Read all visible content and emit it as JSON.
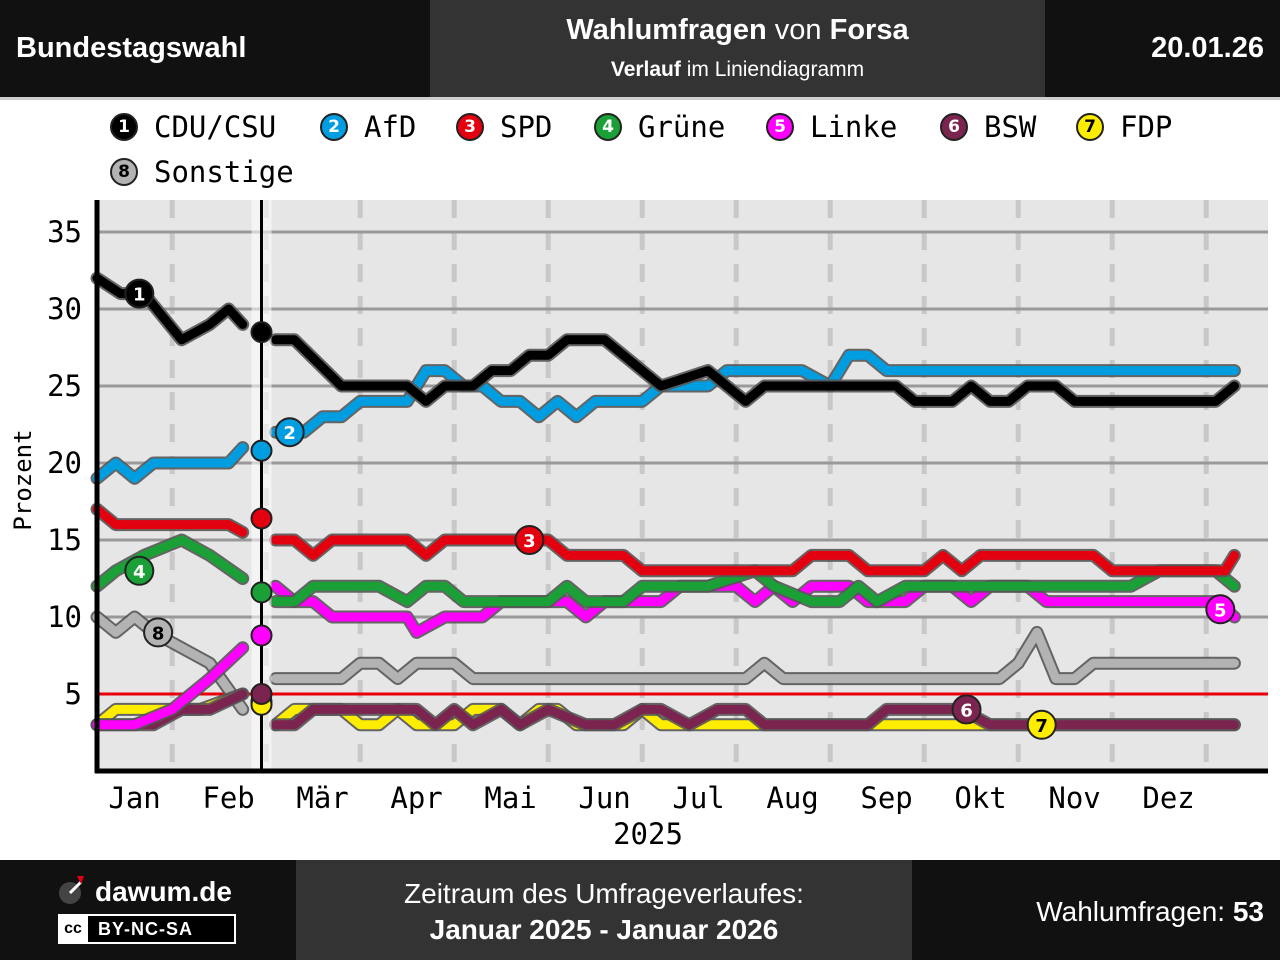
{
  "header": {
    "title": "Bundestagswahl",
    "subtitle_bold1": "Wahlumfragen",
    "subtitle_mid": "von",
    "subtitle_bold2": "Forsa",
    "line2_bold": "Verlauf",
    "line2_rest": "im Liniendiagramm",
    "date": "20.01.26"
  },
  "footer": {
    "site": "dawum.de",
    "license": "BY-NC-SA",
    "license_cc": "cc",
    "period_label": "Zeitraum des Umfrageverlaufes:",
    "period_value": "Januar 2025 - Januar 2026",
    "count_label": "Wahlumfragen:",
    "count_value": "53"
  },
  "colors": {
    "threshold": "#e8000b",
    "plot_bg": "#e6e6e6",
    "gridline": "#999999"
  },
  "chart_data": {
    "type": "line",
    "ylabel": "Prozent",
    "xlabel": "2025",
    "ylim": [
      0,
      37
    ],
    "yticks": [
      5,
      10,
      15,
      20,
      25,
      30,
      35
    ],
    "month_labels": [
      "Jan",
      "Feb",
      "Mär",
      "Apr",
      "Mai",
      "Jun",
      "Jul",
      "Aug",
      "Sep",
      "Okt",
      "Nov",
      "Dez"
    ],
    "x_range_months": [
      0,
      12.5
    ],
    "election_date_month": 1.75,
    "threshold": 5,
    "legend_position": "top",
    "series": [
      {
        "id": 1,
        "name": "CDU/CSU",
        "color": "#000000",
        "text_color": "#ffffff",
        "pre": [
          [
            0,
            32
          ],
          [
            0.25,
            31
          ],
          [
            0.5,
            31
          ],
          [
            0.9,
            28
          ],
          [
            1.2,
            29
          ],
          [
            1.4,
            30
          ],
          [
            1.55,
            29
          ]
        ],
        "election": 28.5,
        "post": [
          [
            1.9,
            28
          ],
          [
            2.1,
            28
          ],
          [
            2.6,
            25
          ],
          [
            3.0,
            25
          ],
          [
            3.3,
            25
          ],
          [
            3.5,
            24
          ],
          [
            3.7,
            25
          ],
          [
            4.0,
            25
          ],
          [
            4.2,
            26
          ],
          [
            4.4,
            26
          ],
          [
            4.6,
            27
          ],
          [
            4.8,
            27
          ],
          [
            5.0,
            28
          ],
          [
            5.4,
            28
          ],
          [
            5.6,
            27
          ],
          [
            5.8,
            26
          ],
          [
            6.0,
            25
          ],
          [
            6.5,
            26
          ],
          [
            6.9,
            24
          ],
          [
            7.1,
            25
          ],
          [
            7.5,
            25
          ],
          [
            7.9,
            25
          ],
          [
            8.2,
            25
          ],
          [
            8.5,
            25
          ],
          [
            8.7,
            24
          ],
          [
            9.1,
            24
          ],
          [
            9.3,
            25
          ],
          [
            9.5,
            24
          ],
          [
            9.7,
            24
          ],
          [
            9.9,
            25
          ],
          [
            10.2,
            25
          ],
          [
            10.4,
            24
          ],
          [
            10.8,
            24
          ],
          [
            11.1,
            24
          ],
          [
            11.4,
            24
          ],
          [
            11.7,
            24
          ],
          [
            11.9,
            24
          ],
          [
            12.1,
            25
          ]
        ],
        "label_at": [
          0.45,
          31
        ]
      },
      {
        "id": 2,
        "name": "AfD",
        "color": "#009ee0",
        "text_color": "#ffffff",
        "pre": [
          [
            0,
            19
          ],
          [
            0.2,
            20
          ],
          [
            0.4,
            19
          ],
          [
            0.6,
            20
          ],
          [
            1.0,
            20
          ],
          [
            1.4,
            20
          ],
          [
            1.55,
            21
          ]
        ],
        "election": 20.8,
        "post": [
          [
            1.9,
            22
          ],
          [
            2.2,
            22
          ],
          [
            2.4,
            23
          ],
          [
            2.6,
            23
          ],
          [
            2.8,
            24
          ],
          [
            3.3,
            24
          ],
          [
            3.5,
            26
          ],
          [
            3.7,
            26
          ],
          [
            3.9,
            25
          ],
          [
            4.1,
            25
          ],
          [
            4.3,
            24
          ],
          [
            4.5,
            24
          ],
          [
            4.7,
            23
          ],
          [
            4.9,
            24
          ],
          [
            5.1,
            23
          ],
          [
            5.3,
            24
          ],
          [
            5.8,
            24
          ],
          [
            6.0,
            25
          ],
          [
            6.5,
            25
          ],
          [
            6.7,
            26
          ],
          [
            7.5,
            26
          ],
          [
            7.8,
            25
          ],
          [
            8.0,
            27
          ],
          [
            8.2,
            27
          ],
          [
            8.4,
            26
          ],
          [
            9.2,
            26
          ],
          [
            10.0,
            26
          ],
          [
            11.0,
            26
          ],
          [
            12.1,
            26
          ]
        ],
        "label_at": [
          2.05,
          22
        ]
      },
      {
        "id": 3,
        "name": "SPD",
        "color": "#e3000f",
        "text_color": "#ffffff",
        "pre": [
          [
            0,
            17
          ],
          [
            0.2,
            16
          ],
          [
            0.6,
            16
          ],
          [
            1.4,
            16
          ],
          [
            1.55,
            15.5
          ]
        ],
        "election": 16.4,
        "post": [
          [
            1.9,
            15
          ],
          [
            2.1,
            15
          ],
          [
            2.3,
            14
          ],
          [
            2.5,
            15
          ],
          [
            3.3,
            15
          ],
          [
            3.5,
            14
          ],
          [
            3.7,
            15
          ],
          [
            4.5,
            15
          ],
          [
            4.8,
            15
          ],
          [
            5.0,
            14
          ],
          [
            5.6,
            14
          ],
          [
            5.8,
            13
          ],
          [
            7.2,
            13
          ],
          [
            7.4,
            13
          ],
          [
            7.6,
            14
          ],
          [
            8.0,
            14
          ],
          [
            8.2,
            13
          ],
          [
            8.8,
            13
          ],
          [
            9.0,
            14
          ],
          [
            9.2,
            13
          ],
          [
            9.4,
            14
          ],
          [
            10.0,
            14
          ],
          [
            10.6,
            14
          ],
          [
            10.8,
            13
          ],
          [
            11.5,
            13
          ],
          [
            12.0,
            13
          ],
          [
            12.1,
            14
          ]
        ],
        "label_at": [
          4.6,
          15
        ]
      },
      {
        "id": 4,
        "name": "Grüne",
        "color": "#1aa037",
        "text_color": "#ffffff",
        "pre": [
          [
            0,
            12
          ],
          [
            0.2,
            13
          ],
          [
            0.5,
            14
          ],
          [
            0.9,
            15
          ],
          [
            1.2,
            14
          ],
          [
            1.55,
            12.5
          ]
        ],
        "election": 11.6,
        "post": [
          [
            1.9,
            11
          ],
          [
            2.1,
            11
          ],
          [
            2.3,
            12
          ],
          [
            3.0,
            12
          ],
          [
            3.3,
            11
          ],
          [
            3.5,
            12
          ],
          [
            3.7,
            12
          ],
          [
            3.9,
            11
          ],
          [
            4.8,
            11
          ],
          [
            5.0,
            12
          ],
          [
            5.2,
            11
          ],
          [
            5.6,
            11
          ],
          [
            5.8,
            12
          ],
          [
            6.5,
            12
          ],
          [
            7.0,
            13
          ],
          [
            7.2,
            12
          ],
          [
            7.6,
            11
          ],
          [
            7.9,
            11
          ],
          [
            8.1,
            12
          ],
          [
            8.3,
            11
          ],
          [
            8.6,
            12
          ],
          [
            9.6,
            12
          ],
          [
            10.6,
            12
          ],
          [
            11.0,
            12
          ],
          [
            11.3,
            13
          ],
          [
            11.9,
            13
          ],
          [
            12.1,
            12
          ]
        ],
        "label_at": [
          0.45,
          13
        ]
      },
      {
        "id": 5,
        "name": "Linke",
        "color": "#ff00ff",
        "text_color": "#ffffff",
        "pre": [
          [
            0,
            3
          ],
          [
            0.4,
            3
          ],
          [
            0.8,
            4
          ],
          [
            1.2,
            6
          ],
          [
            1.55,
            8
          ]
        ],
        "election": 8.8,
        "post": [
          [
            1.9,
            12
          ],
          [
            2.1,
            11
          ],
          [
            2.3,
            11
          ],
          [
            2.5,
            10
          ],
          [
            3.0,
            10
          ],
          [
            3.3,
            10
          ],
          [
            3.4,
            9
          ],
          [
            3.7,
            10
          ],
          [
            4.1,
            10
          ],
          [
            4.3,
            11
          ],
          [
            4.8,
            11
          ],
          [
            5.0,
            11
          ],
          [
            5.2,
            10
          ],
          [
            5.4,
            11
          ],
          [
            6.0,
            11
          ],
          [
            6.2,
            12
          ],
          [
            6.8,
            12
          ],
          [
            7.0,
            11
          ],
          [
            7.2,
            12
          ],
          [
            7.4,
            11
          ],
          [
            7.6,
            12
          ],
          [
            8.0,
            12
          ],
          [
            8.2,
            11
          ],
          [
            8.6,
            11
          ],
          [
            8.8,
            12
          ],
          [
            9.1,
            12
          ],
          [
            9.3,
            11
          ],
          [
            9.5,
            12
          ],
          [
            9.9,
            12
          ],
          [
            10.1,
            11
          ],
          [
            10.6,
            11
          ],
          [
            11.5,
            11
          ],
          [
            11.9,
            11
          ],
          [
            12.1,
            10
          ]
        ],
        "label_at": [
          11.95,
          10.5
        ]
      },
      {
        "id": 6,
        "name": "BSW",
        "color": "#7b2450",
        "text_color": "#ffffff",
        "pre": [
          [
            0,
            3
          ],
          [
            0.3,
            3
          ],
          [
            0.6,
            3
          ],
          [
            0.9,
            4
          ],
          [
            1.2,
            4
          ],
          [
            1.55,
            5
          ]
        ],
        "election": 5.0,
        "post": [
          [
            1.9,
            3
          ],
          [
            2.1,
            3
          ],
          [
            2.3,
            4
          ],
          [
            2.6,
            4
          ],
          [
            3.2,
            4
          ],
          [
            3.4,
            4
          ],
          [
            3.6,
            3
          ],
          [
            3.8,
            4
          ],
          [
            4.0,
            3
          ],
          [
            4.3,
            4
          ],
          [
            4.5,
            3
          ],
          [
            4.8,
            4
          ],
          [
            5.2,
            3
          ],
          [
            5.5,
            3
          ],
          [
            5.8,
            4
          ],
          [
            6.0,
            4
          ],
          [
            6.3,
            3
          ],
          [
            6.6,
            4
          ],
          [
            6.9,
            4
          ],
          [
            7.1,
            3
          ],
          [
            7.5,
            3
          ],
          [
            8.2,
            3
          ],
          [
            8.4,
            4
          ],
          [
            8.8,
            4
          ],
          [
            9.2,
            4
          ],
          [
            9.5,
            3
          ],
          [
            10.0,
            3
          ],
          [
            11.0,
            3
          ],
          [
            12.1,
            3
          ]
        ],
        "label_at": [
          9.25,
          4
        ]
      },
      {
        "id": 7,
        "name": "FDP",
        "color": "#ffed00",
        "text_color": "#000000",
        "pre": [
          [
            0,
            3
          ],
          [
            0.2,
            4
          ],
          [
            0.6,
            4
          ],
          [
            1.1,
            4
          ],
          [
            1.55,
            5
          ]
        ],
        "election": 4.3,
        "post": [
          [
            1.9,
            3
          ],
          [
            2.1,
            4
          ],
          [
            2.6,
            4
          ],
          [
            2.8,
            3
          ],
          [
            3.0,
            3
          ],
          [
            3.2,
            4
          ],
          [
            3.4,
            3
          ],
          [
            3.8,
            3
          ],
          [
            4.0,
            4
          ],
          [
            4.3,
            4
          ],
          [
            4.5,
            3
          ],
          [
            4.7,
            4
          ],
          [
            4.9,
            4
          ],
          [
            5.1,
            3
          ],
          [
            5.6,
            3
          ],
          [
            5.8,
            4
          ],
          [
            6.0,
            3
          ],
          [
            6.6,
            3
          ],
          [
            7.0,
            3
          ],
          [
            8.0,
            3
          ],
          [
            9.0,
            3
          ],
          [
            10.0,
            3
          ],
          [
            11.0,
            3
          ],
          [
            12.1,
            3
          ]
        ],
        "label_at": [
          10.05,
          3
        ]
      },
      {
        "id": 8,
        "name": "Sonstige",
        "color": "#b3b3b3",
        "text_color": "#000000",
        "pre": [
          [
            0,
            10
          ],
          [
            0.2,
            9
          ],
          [
            0.4,
            10
          ],
          [
            0.6,
            9
          ],
          [
            0.9,
            8
          ],
          [
            1.2,
            7
          ],
          [
            1.55,
            4
          ]
        ],
        "election": 4.5,
        "post": [
          [
            1.9,
            6
          ],
          [
            2.1,
            6
          ],
          [
            2.6,
            6
          ],
          [
            2.8,
            7
          ],
          [
            3.0,
            7
          ],
          [
            3.2,
            6
          ],
          [
            3.4,
            7
          ],
          [
            3.8,
            7
          ],
          [
            4.0,
            6
          ],
          [
            4.6,
            6
          ],
          [
            5.2,
            6
          ],
          [
            6.2,
            6
          ],
          [
            6.9,
            6
          ],
          [
            7.1,
            7
          ],
          [
            7.3,
            6
          ],
          [
            7.6,
            6
          ],
          [
            8.2,
            6
          ],
          [
            9.0,
            6
          ],
          [
            9.6,
            6
          ],
          [
            9.8,
            7
          ],
          [
            10.0,
            9
          ],
          [
            10.2,
            6
          ],
          [
            10.4,
            6
          ],
          [
            10.6,
            7
          ],
          [
            11.0,
            7
          ],
          [
            11.5,
            7
          ],
          [
            12.1,
            7
          ]
        ],
        "label_at": [
          0.65,
          9
        ]
      }
    ]
  }
}
